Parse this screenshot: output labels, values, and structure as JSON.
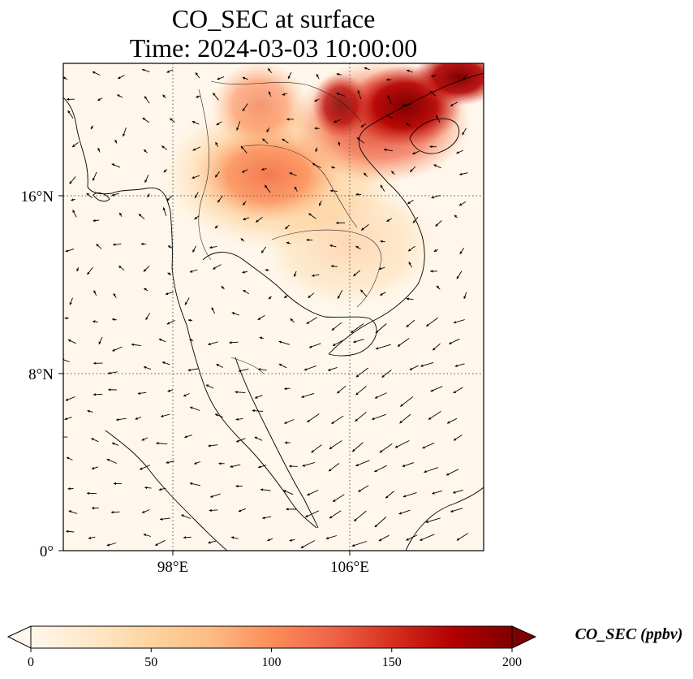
{
  "title": {
    "line1": "CO_SEC at surface",
    "line2": "Time: 2024-03-03 10:00:00"
  },
  "map": {
    "lon_range": [
      93,
      112
    ],
    "lat_range": [
      0,
      22
    ],
    "x_ticks": [
      {
        "lon": 98,
        "label": "98°E"
      },
      {
        "lon": 106,
        "label": "106°E"
      }
    ],
    "y_ticks": [
      {
        "lat": 0,
        "label": "0°"
      },
      {
        "lat": 8,
        "label": "8°N"
      },
      {
        "lat": 16,
        "label": "16°N"
      }
    ],
    "gridlines": "dotted",
    "field": "CO_SEC surface concentration",
    "hotspots": [
      {
        "lon": 108.5,
        "lat": 20.5,
        "value": 180
      },
      {
        "lon": 106.5,
        "lat": 19.5,
        "value": 150
      },
      {
        "lon": 103.0,
        "lat": 17.5,
        "value": 95
      },
      {
        "lon": 101.5,
        "lat": 16.0,
        "value": 85
      },
      {
        "lon": 104.0,
        "lat": 15.0,
        "value": 60
      },
      {
        "lon": 100.5,
        "lat": 20.0,
        "value": 70
      },
      {
        "lon": 110.5,
        "lat": 21.5,
        "value": 200
      }
    ],
    "wind_vectors": "quiver arrows"
  },
  "colorbar": {
    "label": "CO_SEC (ppbv)",
    "min": 0,
    "max": 200,
    "ticks": [
      0,
      50,
      100,
      150,
      200
    ],
    "extend": "both",
    "colormap": [
      "#fff7ec",
      "#fee8c8",
      "#fdd49e",
      "#fdbb84",
      "#fc8d59",
      "#ef6548",
      "#d7301f",
      "#b30000",
      "#7f0000"
    ]
  }
}
